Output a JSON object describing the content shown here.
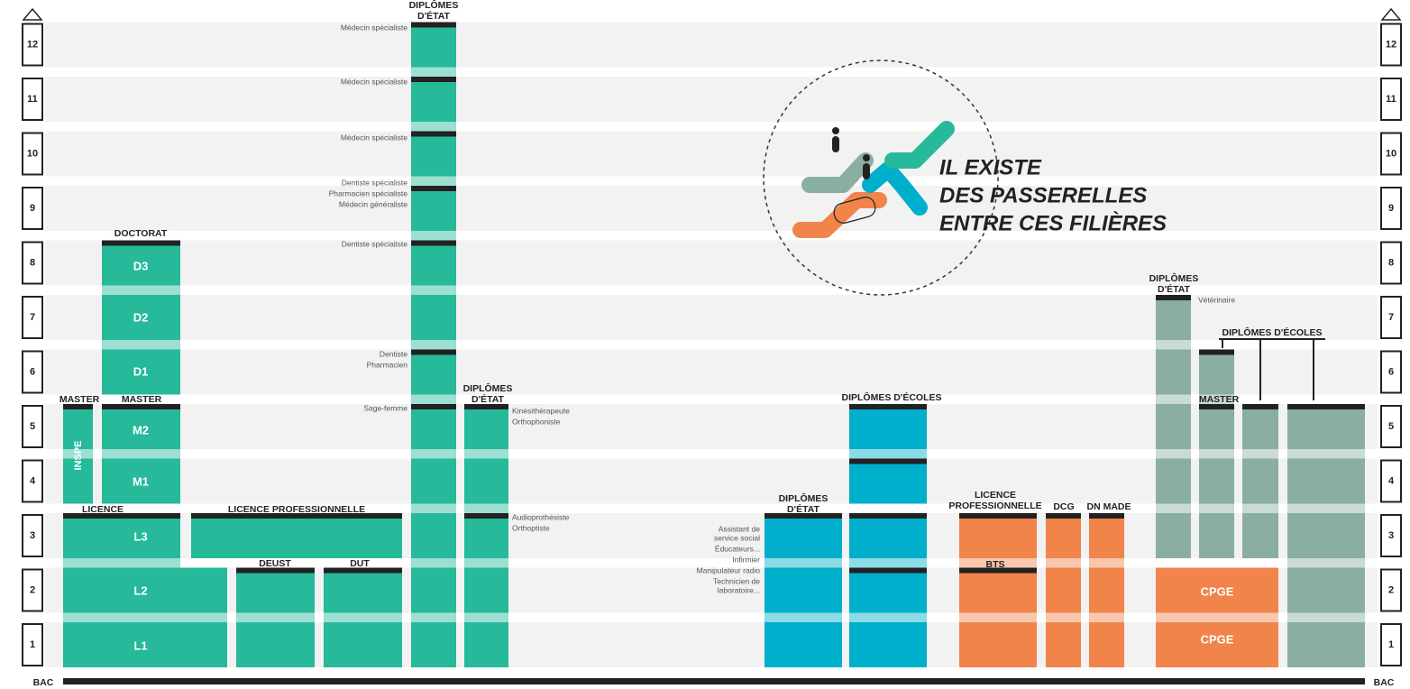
{
  "years": [
    "1",
    "2",
    "3",
    "4",
    "5",
    "6",
    "7",
    "8",
    "9",
    "10",
    "11",
    "12"
  ],
  "bac": "BAC",
  "universite": {
    "doctorat": "DOCTORAT",
    "master_inspe": "MASTER",
    "master": "MASTER",
    "inspe": "INSPE",
    "licence": "LICENCE",
    "licence_pro": "LICENCE PROFESSIONNELLE",
    "deust": "DEUST",
    "dut": "DUT",
    "blocks": [
      "L1",
      "L2",
      "L3",
      "M1",
      "M2",
      "D1",
      "D2",
      "D3"
    ]
  },
  "sante": {
    "title": [
      "DIPLÔMES",
      "D'ÉTAT"
    ],
    "notes": [
      "Médecin spécialiste",
      "Médecin spécialiste",
      "Médecin spécialiste",
      "Dentiste spécialiste",
      "Pharmacien spécialiste",
      "Médecin généraliste",
      "Dentiste spécialiste",
      "Dentiste",
      "Pharmacien",
      "Sage-femme"
    ]
  },
  "paramedical": {
    "title": [
      "DIPLÔMES",
      "D'ÉTAT"
    ],
    "notes": [
      "Kinésithérapeute",
      "Orthophoniste",
      "Audioprothésiste",
      "Orthoptiste"
    ]
  },
  "social": {
    "title": [
      "DIPLÔMES",
      "D'ÉTAT"
    ],
    "notes": [
      [
        "Assistant de",
        "service social"
      ],
      "Éducateurs...",
      "Infirmier",
      "Manipulateur radio",
      [
        "Technicien de",
        "laboratoire..."
      ]
    ],
    "ecoles": "DIPLÔMES D'ÉCOLES"
  },
  "courtes": {
    "licence_pro": [
      "LICENCE",
      "PROFESSIONNELLE"
    ],
    "dcg": "DCG",
    "dn_made": "DN MADE",
    "bts": "BTS"
  },
  "grandes_ecoles": {
    "veto_title": [
      "DIPLÔMES",
      "D'ÉTAT"
    ],
    "veto": "Vétérinaire",
    "ecoles": "DIPLÔMES D'ÉCOLES",
    "master": "MASTER",
    "cpge": [
      "CPGE",
      "CPGE"
    ]
  },
  "callout": [
    "IL EXISTE",
    "DES PASSERELLES",
    "ENTRE CES FILIÈRES"
  ]
}
